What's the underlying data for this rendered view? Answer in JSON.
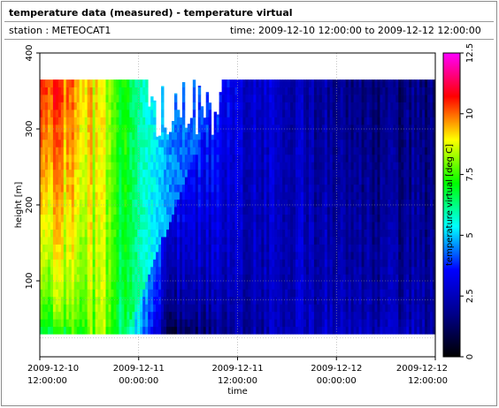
{
  "header": {
    "title": "temperature data (measured) - temperature virtual",
    "station_label": "station : METEOCAT1",
    "time_label": "time: 2009-12-10 12:00:00 to 2009-12-12 12:00:00"
  },
  "chart_data": {
    "type": "heatmap",
    "xlabel": "time",
    "ylabel": "height [m]",
    "colorbar_label": "temperature virtual [deg C]",
    "x_range": [
      "2009-12-10 12:00:00",
      "2009-12-12 12:00:00"
    ],
    "x_ticks": [
      {
        "line1": "2009-12-10",
        "line2": "12:00:00",
        "hours": 0
      },
      {
        "line1": "2009-12-11",
        "line2": "00:00:00",
        "hours": 12
      },
      {
        "line1": "2009-12-11",
        "line2": "12:00:00",
        "hours": 24
      },
      {
        "line1": "2009-12-12",
        "line2": "00:00:00",
        "hours": 36
      },
      {
        "line1": "2009-12-12",
        "line2": "12:00:00",
        "hours": 48
      }
    ],
    "y_ticks": [
      {
        "label": "100",
        "value": 100
      },
      {
        "label": "200",
        "value": 200
      },
      {
        "label": "300",
        "value": 300
      },
      {
        "label": "400",
        "value": 400
      }
    ],
    "ylim": [
      0,
      400
    ],
    "colorbar_ticks": [
      {
        "label": "0",
        "value": 0
      },
      {
        "label": "2.5",
        "value": 2.5
      },
      {
        "label": "5",
        "value": 5
      },
      {
        "label": "7.5",
        "value": 7.5
      },
      {
        "label": "10",
        "value": 10
      },
      {
        "label": "12.5",
        "value": 12.5
      }
    ],
    "clim": [
      0,
      12.5
    ],
    "colormap": [
      "#000000",
      "#00008b",
      "#0000ff",
      "#00ffff",
      "#00ff00",
      "#ffff00",
      "#ff0000",
      "#ff00ff"
    ],
    "data_height_range": [
      30,
      365
    ],
    "grid": true,
    "approximate_profile": {
      "description_hours": [
        0,
        4,
        8,
        12,
        16,
        20,
        24,
        30,
        36,
        42,
        48
      ],
      "surface_temp": [
        6.5,
        7.5,
        8.0,
        5.0,
        1.0,
        1.5,
        2.0,
        2.5,
        2.8,
        2.5,
        2.2
      ],
      "top_temp": [
        10.5,
        10.0,
        8.5,
        6.0,
        4.5,
        4.0,
        3.0,
        2.5,
        2.0,
        1.6,
        1.5
      ]
    }
  }
}
